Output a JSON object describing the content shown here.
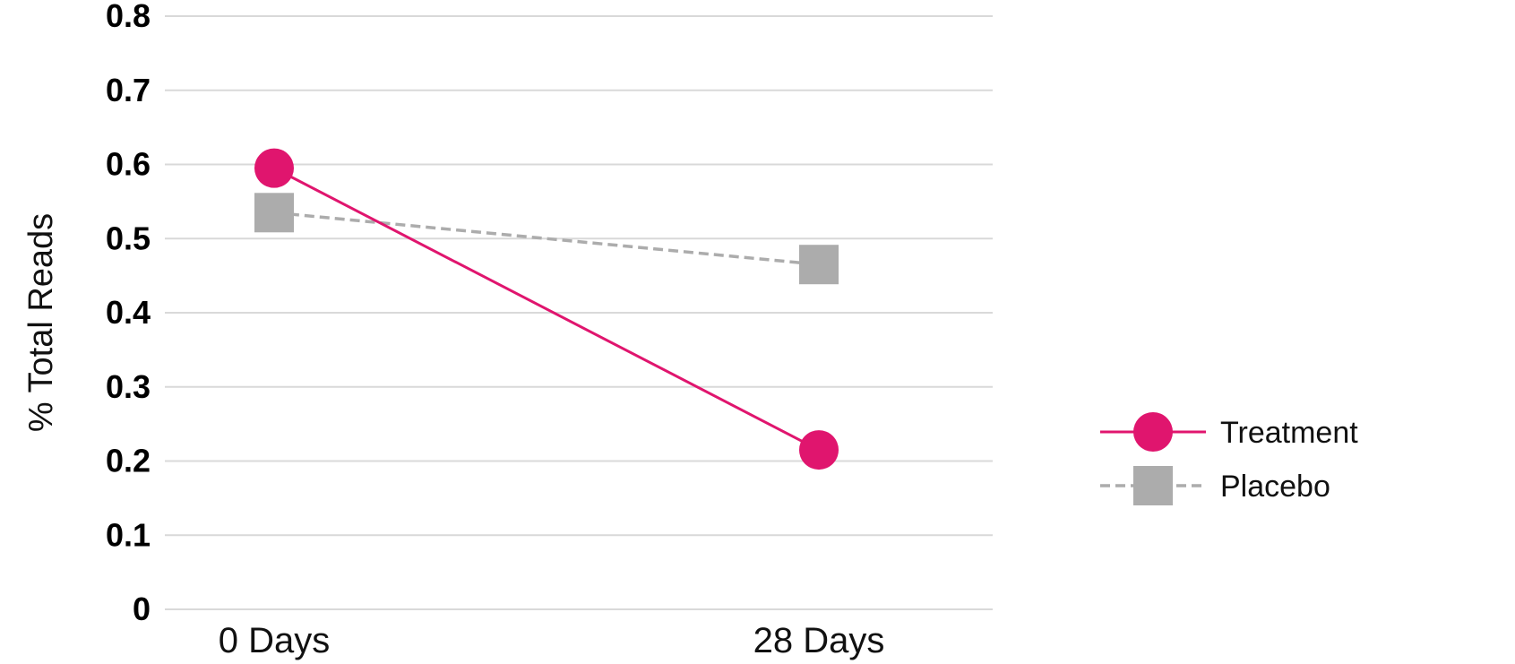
{
  "chart_data": {
    "type": "line",
    "categories": [
      "0 Days",
      "28 Days"
    ],
    "ylabel": "% Total Reads",
    "ylim": [
      0,
      0.8
    ],
    "yticks": [
      "0",
      "0.1",
      "0.2",
      "0.3",
      "0.4",
      "0.5",
      "0.6",
      "0.7",
      "0.8"
    ],
    "grid": true,
    "legend_position": "right",
    "series": [
      {
        "name": "Treatment",
        "values": [
          0.595,
          0.215
        ],
        "color": "#e0156e",
        "marker": "circle",
        "line_style": "solid"
      },
      {
        "name": "Placebo",
        "values": [
          0.535,
          0.465
        ],
        "color": "#acacac",
        "marker": "square",
        "line_style": "dashed"
      }
    ]
  }
}
